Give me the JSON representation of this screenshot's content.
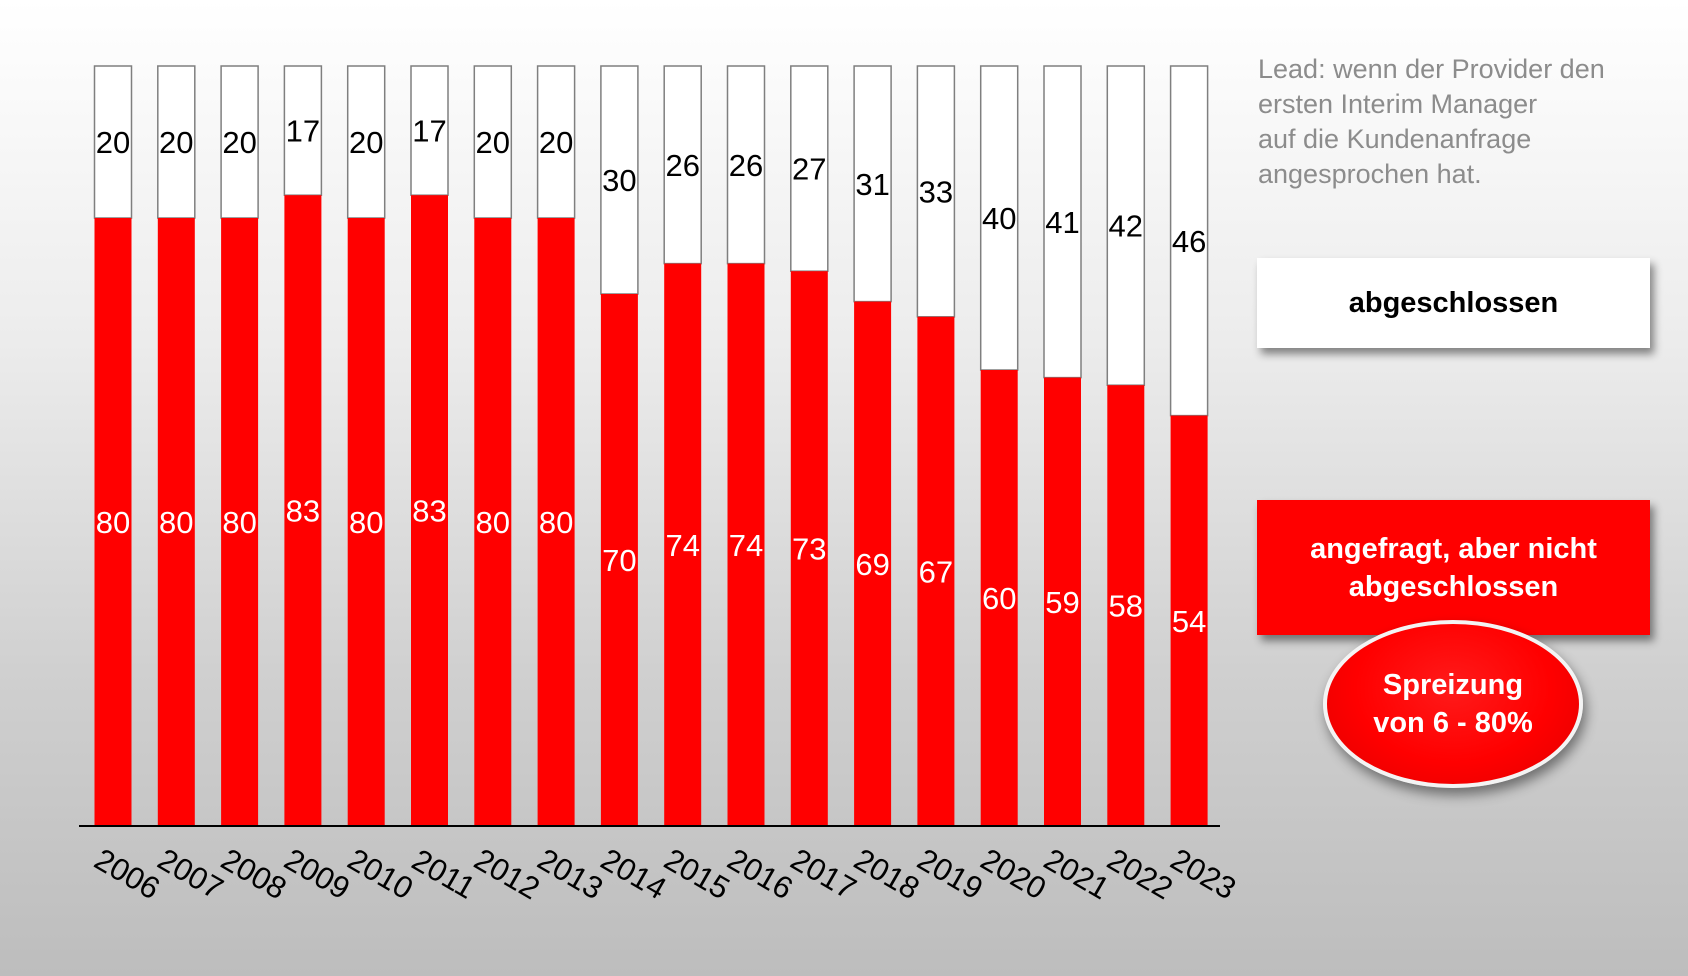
{
  "chart_data": {
    "type": "bar",
    "stacked": true,
    "categories": [
      "2006",
      "2007",
      "2008",
      "2009",
      "2010",
      "2011",
      "2012",
      "2013",
      "2014",
      "2015",
      "2016",
      "2017",
      "2018",
      "2019",
      "2020",
      "2021",
      "2022",
      "2023"
    ],
    "series": [
      {
        "values": [
          80,
          80,
          80,
          83,
          80,
          83,
          80,
          80,
          70,
          74,
          74,
          73,
          69,
          67,
          60,
          59,
          58,
          54
        ],
        "color": "#ff0000"
      },
      {
        "values": [
          20,
          20,
          20,
          17,
          20,
          17,
          20,
          20,
          30,
          26,
          26,
          27,
          31,
          33,
          40,
          41,
          42,
          46
        ],
        "color": "#ffffff"
      }
    ],
    "ylim": [
      0,
      100
    ],
    "grid": false,
    "legend_placement": "right"
  },
  "note": {
    "lines": [
      "Lead: wenn der Provider den",
      "ersten Interim Manager",
      "auf die Kundenanfrage",
      "angesprochen hat."
    ]
  },
  "legend": {
    "white_label": "abgeschlossen",
    "red_lines": [
      "angefragt, aber nicht",
      "abgeschlossen"
    ]
  },
  "callout": {
    "lines": [
      "Spreizung",
      "von 6 - 80%"
    ]
  },
  "colors": {
    "red": "#ff0000",
    "white": "#ffffff",
    "note_gray": "#8c8c8c"
  }
}
